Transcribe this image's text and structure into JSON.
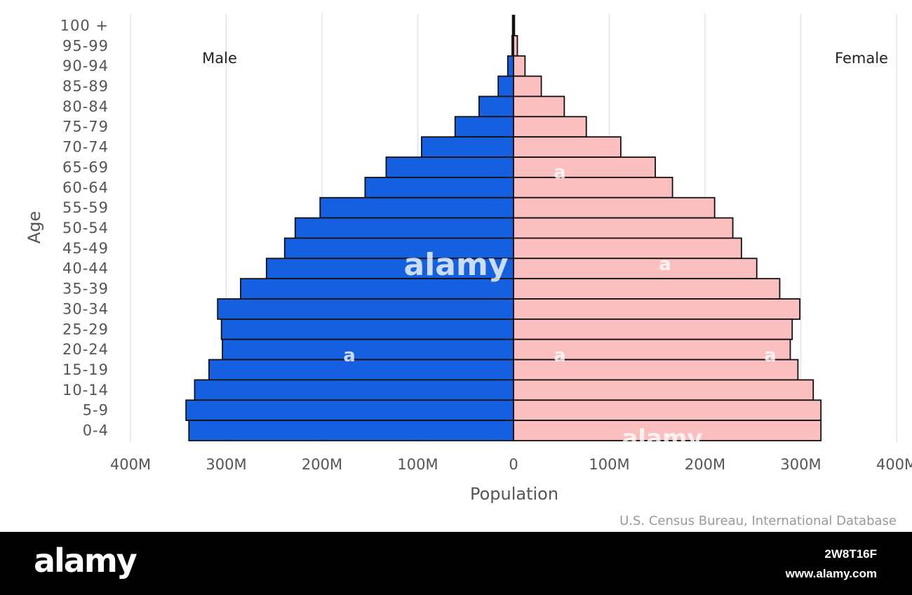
{
  "chart_data": {
    "type": "bar",
    "orientation": "horizontal-diverging",
    "categories": [
      "100 +",
      "95-99",
      "90-94",
      "85-89",
      "80-84",
      "75-79",
      "70-74",
      "65-69",
      "60-64",
      "55-59",
      "50-54",
      "45-49",
      "40-44",
      "35-39",
      "30-34",
      "25-29",
      "20-24",
      "15-19",
      "10-14",
      "5-9",
      "0-4"
    ],
    "series": [
      {
        "name": "Male",
        "color": "#1560e0",
        "values": [
          1,
          1.5,
          6,
          16,
          36,
          61,
          96,
          133,
          155,
          202,
          228,
          239,
          258,
          285,
          309,
          305,
          304,
          318,
          333,
          342,
          339
        ]
      },
      {
        "name": "Female",
        "color": "#fbbfc0",
        "values": [
          1,
          4,
          12,
          29,
          53,
          76,
          112,
          148,
          166,
          210,
          229,
          238,
          254,
          278,
          299,
          291,
          289,
          297,
          313,
          321,
          321
        ]
      }
    ],
    "xlabel": "Population",
    "ylabel": "Age",
    "xticks": [
      "400M",
      "300M",
      "200M",
      "100M",
      "0",
      "100M",
      "200M",
      "300M",
      "400M"
    ],
    "xlim": [
      -400,
      400
    ],
    "unit": "millions",
    "grid": "vertical",
    "source": "U.S. Census Bureau, International Database"
  },
  "watermark": {
    "brand": "alamy",
    "letter": "a",
    "image_id": "2W8T16F",
    "site": "www.alamy.com"
  }
}
